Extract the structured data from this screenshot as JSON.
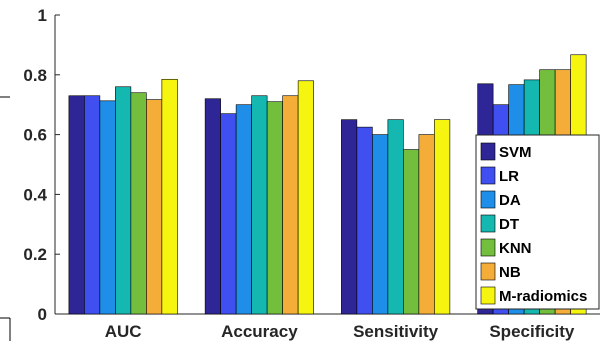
{
  "chart_data": {
    "type": "bar",
    "title": "",
    "xlabel": "",
    "ylabel": "",
    "ylim": [
      0,
      1
    ],
    "yticks": [
      "0",
      "0.2",
      "0.4",
      "0.6",
      "0.8",
      "1"
    ],
    "ytick_values": [
      0,
      0.2,
      0.4,
      0.6,
      0.8,
      1
    ],
    "categories": [
      "AUC",
      "Accuracy",
      "Sensitivity",
      "Specificity"
    ],
    "legend_position": "right",
    "grid": false,
    "series": [
      {
        "name": "SVM",
        "color": "#2e2596",
        "values": [
          0.73,
          0.72,
          0.65,
          0.77
        ]
      },
      {
        "name": "LR",
        "color": "#3f4ff0",
        "values": [
          0.73,
          0.67,
          0.625,
          0.7
        ]
      },
      {
        "name": "DA",
        "color": "#1f8ee8",
        "values": [
          0.713,
          0.7,
          0.6,
          0.767
        ]
      },
      {
        "name": "DT",
        "color": "#14b8b0",
        "values": [
          0.76,
          0.73,
          0.65,
          0.783
        ]
      },
      {
        "name": "KNN",
        "color": "#73bf3d",
        "values": [
          0.74,
          0.71,
          0.55,
          0.817
        ]
      },
      {
        "name": "NB",
        "color": "#f5ad3a",
        "values": [
          0.717,
          0.73,
          0.6,
          0.817
        ]
      },
      {
        "name": "M-radiomics",
        "color": "#f6f50f",
        "values": [
          0.785,
          0.78,
          0.65,
          0.867
        ]
      }
    ]
  }
}
